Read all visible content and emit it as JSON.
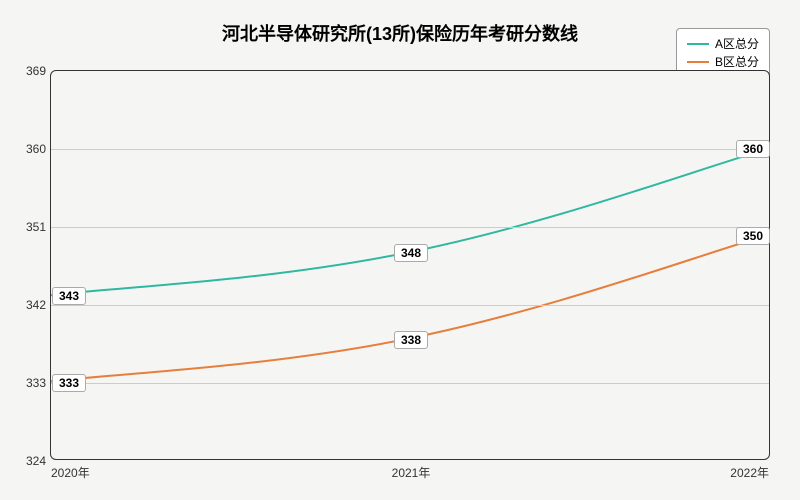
{
  "chart": {
    "type": "line",
    "title": "河北半导体研究所(13所)保险历年考研分数线",
    "title_fontsize": 18,
    "background_color": "#f5f5f3",
    "plot_background": "#f5f5f3",
    "border_color": "#333333",
    "grid_color": "#cccccc",
    "xlim": [
      2020,
      2022
    ],
    "ylim": [
      324,
      369
    ],
    "ytick_step": 9,
    "yticks": [
      324,
      333,
      342,
      351,
      360,
      369
    ],
    "x_labels": [
      "2020年",
      "2021年",
      "2022年"
    ],
    "x_values": [
      2020,
      2021,
      2022
    ],
    "label_fontsize": 12,
    "line_width": 2,
    "series": [
      {
        "name": "A区总分",
        "color": "#2eb8a0",
        "values": [
          343,
          348,
          360
        ]
      },
      {
        "name": "B区总分",
        "color": "#e67e3c",
        "values": [
          333,
          338,
          350
        ]
      }
    ]
  }
}
